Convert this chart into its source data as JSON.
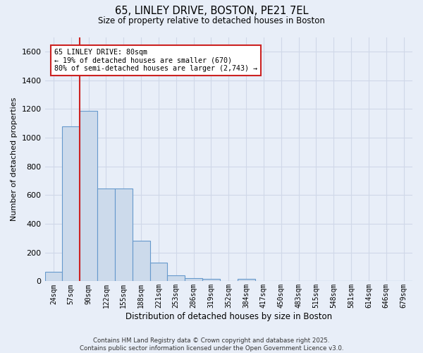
{
  "title_line1": "65, LINLEY DRIVE, BOSTON, PE21 7EL",
  "title_line2": "Size of property relative to detached houses in Boston",
  "xlabel": "Distribution of detached houses by size in Boston",
  "ylabel": "Number of detached properties",
  "categories": [
    "24sqm",
    "57sqm",
    "90sqm",
    "122sqm",
    "155sqm",
    "188sqm",
    "221sqm",
    "253sqm",
    "286sqm",
    "319sqm",
    "352sqm",
    "384sqm",
    "417sqm",
    "450sqm",
    "483sqm",
    "515sqm",
    "548sqm",
    "581sqm",
    "614sqm",
    "646sqm",
    "679sqm"
  ],
  "values": [
    65,
    1080,
    1185,
    645,
    645,
    280,
    130,
    40,
    20,
    15,
    0,
    15,
    0,
    0,
    0,
    0,
    0,
    0,
    0,
    0,
    0
  ],
  "bar_color": "#ccdaeb",
  "bar_edge_color": "#6699cc",
  "vline_x_idx": 2,
  "vline_color": "#cc2222",
  "annotation_text": "65 LINLEY DRIVE: 80sqm\n← 19% of detached houses are smaller (670)\n80% of semi-detached houses are larger (2,743) →",
  "annotation_box_facecolor": "#ffffff",
  "annotation_box_edgecolor": "#cc2222",
  "ylim": [
    0,
    1700
  ],
  "yticks": [
    0,
    200,
    400,
    600,
    800,
    1000,
    1200,
    1400,
    1600
  ],
  "grid_color": "#d0d8e8",
  "background_color": "#e8eef8",
  "footer_line1": "Contains HM Land Registry data © Crown copyright and database right 2025.",
  "footer_line2": "Contains public sector information licensed under the Open Government Licence v3.0."
}
